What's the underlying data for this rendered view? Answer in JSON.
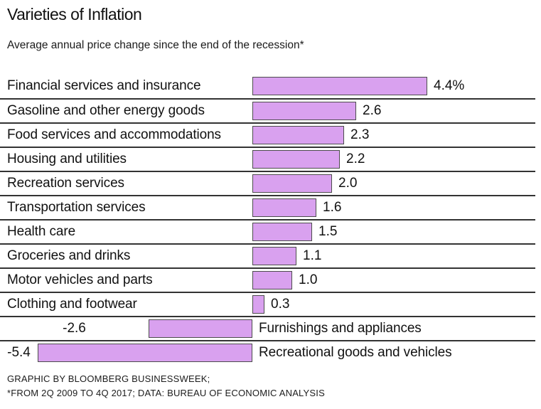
{
  "header": {
    "title": "Varieties of Inflation",
    "subtitle": "Average annual price change since the end of the recession*"
  },
  "chart_data": {
    "type": "bar",
    "orientation": "horizontal",
    "title": "Varieties of Inflation",
    "subtitle": "Average annual price change since the end of the recession*",
    "categories": [
      "Financial services and insurance",
      "Gasoline and other energy goods",
      "Food services and accommodations",
      "Housing and utilities",
      "Recreation services",
      "Transportation services",
      "Health care",
      "Groceries and drinks",
      "Motor vehicles and parts",
      "Clothing and footwear",
      "Furnishings and appliances",
      "Recreational goods and vehicles"
    ],
    "values": [
      4.4,
      2.6,
      2.3,
      2.2,
      2.0,
      1.6,
      1.5,
      1.1,
      1.0,
      0.3,
      -2.6,
      -5.4
    ],
    "value_labels": [
      "4.4%",
      "2.6",
      "2.3",
      "2.2",
      "2.0",
      "1.6",
      "1.5",
      "1.1",
      "1.0",
      "0.3",
      "-2.6",
      "-5.4"
    ],
    "xlim": [
      -5.4,
      4.4
    ],
    "grid": false,
    "legend": "none",
    "bar_color": "#d9a1ef",
    "bar_border_color": "#4d4d4d",
    "divider_color": "#333333"
  },
  "footer": {
    "line1": "GRAPHIC BY BLOOMBERG BUSINESSWEEK;",
    "line2": "*FROM 2Q 2009 TO 4Q 2017; DATA: BUREAU OF ECONOMIC ANALYSIS"
  }
}
